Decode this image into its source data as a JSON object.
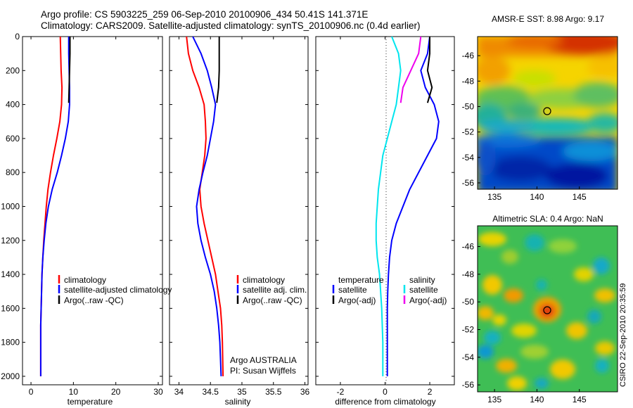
{
  "header": {
    "title_line1": "Argo profile: CS 5903225_259 06-Sep-2010 20100906_434 50.41S 141.371E",
    "title_line2": "Climatology: CARS2009. Satellite-adjusted climatology: synTS_20100906.nc (0.4d earlier)"
  },
  "credit": "CSIRO 22-Sep-2010 20:35:59",
  "colors": {
    "climatology": "#ff0000",
    "satellite": "#0000ff",
    "argo": "#000000",
    "satellite_salinity": "#00e5ee",
    "argo_adj_salinity": "#ee00ee"
  },
  "chart_data": [
    {
      "type": "line",
      "panel": "temperature",
      "xlabel": "temperature",
      "ylabel": "",
      "xlim": [
        -2,
        31
      ],
      "ylim": [
        2050,
        0
      ],
      "xticks": [
        0,
        10,
        20,
        30
      ],
      "yticks": [
        0,
        200,
        400,
        600,
        800,
        1000,
        1200,
        1400,
        1600,
        1800,
        2000
      ],
      "legend": [
        "climatology",
        "satellite-adjusted climatology",
        "Argo(..raw -QC)"
      ],
      "series": [
        {
          "name": "climatology",
          "color": "#ff0000",
          "x": [
            6.9,
            7.0,
            7.1,
            7.3,
            7.2,
            6.8,
            6.1,
            5.3,
            4.6,
            4.0,
            3.6,
            3.3,
            3.0,
            2.8,
            2.6,
            2.5,
            2.4,
            2.3,
            2.3,
            2.3
          ],
          "y": [
            0,
            100,
            200,
            300,
            400,
            500,
            600,
            700,
            800,
            900,
            1000,
            1100,
            1200,
            1300,
            1400,
            1500,
            1600,
            1700,
            1800,
            2000
          ]
        },
        {
          "name": "satellite-adjusted climatology",
          "color": "#0000ff",
          "x": [
            8.9,
            8.9,
            9.0,
            9.1,
            9.1,
            8.8,
            8.1,
            7.2,
            6.2,
            5.0,
            4.1,
            3.5,
            3.1,
            2.8,
            2.6,
            2.5,
            2.4,
            2.3,
            2.3,
            2.3
          ],
          "y": [
            0,
            100,
            200,
            300,
            400,
            500,
            600,
            700,
            800,
            900,
            1000,
            1100,
            1200,
            1300,
            1400,
            1500,
            1600,
            1700,
            1800,
            2000
          ]
        },
        {
          "name": "Argo(..raw -QC)",
          "color": "#000000",
          "x": [
            9.2,
            9.2,
            9.1,
            9.0,
            8.9
          ],
          "y": [
            0,
            100,
            200,
            300,
            390
          ]
        }
      ]
    },
    {
      "type": "line",
      "panel": "salinity",
      "xlabel": "salinity",
      "ylabel": "",
      "xlim": [
        33.85,
        36.05
      ],
      "ylim": [
        2050,
        0
      ],
      "xticks": [
        34,
        34.5,
        35,
        35.5,
        36
      ],
      "yticks": [
        0,
        200,
        400,
        600,
        800,
        1000,
        1200,
        1400,
        1600,
        1800,
        2000
      ],
      "legend": [
        "climatology",
        "satellite adj. clim.",
        "Argo(..raw -QC)"
      ],
      "annotations": [
        "Argo AUSTRALIA",
        "PI: Susan Wijffels"
      ],
      "series": [
        {
          "name": "climatology",
          "color": "#ff0000",
          "x": [
            34.12,
            34.15,
            34.22,
            34.32,
            34.4,
            34.42,
            34.43,
            34.41,
            34.37,
            34.33,
            34.35,
            34.4,
            34.46,
            34.52,
            34.58,
            34.62,
            34.66,
            34.68,
            34.69,
            34.7
          ],
          "y": [
            0,
            100,
            200,
            300,
            400,
            500,
            600,
            700,
            800,
            900,
            1000,
            1100,
            1200,
            1300,
            1400,
            1500,
            1600,
            1700,
            1800,
            2000
          ]
        },
        {
          "name": "satellite adj. clim.",
          "color": "#0000ff",
          "x": [
            34.22,
            34.35,
            34.45,
            34.52,
            34.58,
            34.55,
            34.5,
            34.45,
            34.38,
            34.32,
            34.28,
            34.3,
            34.35,
            34.42,
            34.5,
            34.56,
            34.6,
            34.63,
            34.65,
            34.67
          ],
          "y": [
            0,
            100,
            200,
            300,
            400,
            500,
            600,
            700,
            800,
            900,
            1000,
            1100,
            1200,
            1300,
            1400,
            1500,
            1600,
            1700,
            1800,
            2000
          ]
        },
        {
          "name": "Argo(..raw -QC)",
          "color": "#000000",
          "x": [
            34.64,
            34.64,
            34.64,
            34.63,
            34.6
          ],
          "y": [
            0,
            100,
            200,
            300,
            390
          ]
        }
      ]
    },
    {
      "type": "line",
      "panel": "difference",
      "xlabel": "difference from climatology",
      "ylabel": "",
      "xlim": [
        -3.1,
        3.1
      ],
      "ylim": [
        2050,
        0
      ],
      "xticks": [
        -2,
        0,
        2
      ],
      "yticks": [
        0,
        200,
        400,
        600,
        800,
        1000,
        1200,
        1400,
        1600,
        1800,
        2000
      ],
      "legend": [
        "temperature",
        "satellite",
        "Argo(-adj)",
        "salinity",
        "satellite",
        "Argo(-adj)"
      ],
      "series": [
        {
          "name": "temperature satellite",
          "color": "#0000ff",
          "x": [
            2.0,
            1.9,
            1.6,
            1.8,
            2.2,
            2.4,
            2.3,
            1.9,
            1.1,
            0.5,
            0.3,
            0.2,
            0.15,
            0.12,
            0.1,
            0.1,
            0.1,
            0.1
          ],
          "y": [
            0,
            100,
            200,
            300,
            400,
            500,
            600,
            700,
            900,
            1100,
            1200,
            1300,
            1400,
            1500,
            1600,
            1700,
            1800,
            2000
          ]
        },
        {
          "name": "temperature Argo(-adj)",
          "color": "#000000",
          "x": [
            2.0,
            2.0,
            1.9,
            2.1,
            1.9
          ],
          "y": [
            0,
            100,
            200,
            300,
            390
          ]
        },
        {
          "name": "salinity satellite",
          "color": "#00e5ee",
          "x": [
            0.3,
            0.6,
            0.7,
            0.6,
            0.5,
            0.3,
            0.1,
            -0.1,
            -0.3,
            -0.4,
            -0.4,
            -0.35,
            -0.25,
            -0.15,
            -0.1,
            -0.1
          ],
          "y": [
            0,
            100,
            200,
            300,
            400,
            500,
            600,
            700,
            900,
            1100,
            1200,
            1300,
            1400,
            1600,
            1800,
            2000
          ]
        },
        {
          "name": "salinity Argo(-adj)",
          "color": "#ee00ee",
          "x": [
            1.6,
            1.5,
            0.8,
            0.7
          ],
          "y": [
            0,
            100,
            300,
            390
          ]
        }
      ]
    },
    {
      "type": "heatmap",
      "panel": "amsr-e-sst",
      "title": "AMSR-E SST: 8.98 Argo: 9.17",
      "xlim": [
        133,
        149.5
      ],
      "ylim": [
        -56.5,
        -44.5
      ],
      "xticks": [
        135,
        140,
        145
      ],
      "yticks": [
        -46,
        -48,
        -50,
        -52,
        -54,
        -56
      ],
      "marker": {
        "lon": 141.371,
        "lat": -50.41
      }
    },
    {
      "type": "heatmap",
      "panel": "altimetric-sla",
      "title": "Altimetric SLA: 0.4 Argo: NaN",
      "xlim": [
        133,
        149.5
      ],
      "ylim": [
        -56.5,
        -44.5
      ],
      "xticks": [
        135,
        140,
        145
      ],
      "yticks": [
        -46,
        -48,
        -50,
        -52,
        -54,
        -56
      ],
      "marker": {
        "lon": 141.371,
        "lat": -50.41
      }
    }
  ]
}
